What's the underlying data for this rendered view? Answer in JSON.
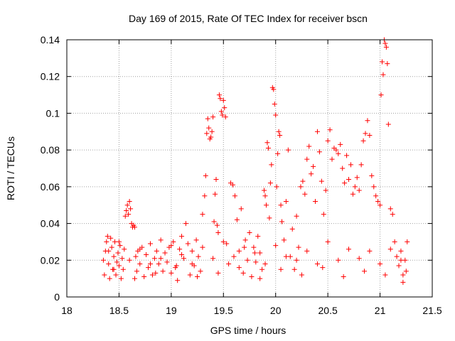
{
  "chart_data": {
    "type": "scatter",
    "title": "Day 169 of 2015, Rate Of TEC Index for receiver bscn",
    "xlabel": "GPS time / hours",
    "ylabel": "ROTI / TECUs",
    "xlim": [
      18,
      21.5
    ],
    "ylim": [
      0,
      0.14
    ],
    "xticks": [
      "18",
      "18.5",
      "19",
      "19.5",
      "20",
      "20.5",
      "21",
      "21.5"
    ],
    "yticks": [
      "0",
      "0.02",
      "0.04",
      "0.06",
      "0.08",
      "0.1",
      "0.12",
      "0.14"
    ],
    "grid": true,
    "marker": "+",
    "series_color": "#ff0000",
    "points": [
      [
        18.35,
        0.02
      ],
      [
        18.36,
        0.012
      ],
      [
        18.37,
        0.025
      ],
      [
        18.38,
        0.03
      ],
      [
        18.39,
        0.033
      ],
      [
        18.4,
        0.018
      ],
      [
        18.41,
        0.01
      ],
      [
        18.42,
        0.032
      ],
      [
        18.43,
        0.027
      ],
      [
        18.44,
        0.015
      ],
      [
        18.45,
        0.022
      ],
      [
        18.46,
        0.03
      ],
      [
        18.47,
        0.012
      ],
      [
        18.48,
        0.019
      ],
      [
        18.49,
        0.024
      ],
      [
        18.5,
        0.017
      ],
      [
        18.51,
        0.028
      ],
      [
        18.52,
        0.01
      ],
      [
        18.53,
        0.021
      ],
      [
        18.54,
        0.015
      ],
      [
        18.55,
        0.026
      ],
      [
        18.56,
        0.044
      ],
      [
        18.57,
        0.047
      ],
      [
        18.58,
        0.05
      ],
      [
        18.59,
        0.045
      ],
      [
        18.6,
        0.052
      ],
      [
        18.61,
        0.048
      ],
      [
        18.62,
        0.04
      ],
      [
        18.63,
        0.038
      ],
      [
        18.64,
        0.039
      ],
      [
        18.65,
        0.038
      ],
      [
        18.66,
        0.022
      ],
      [
        18.67,
        0.014
      ],
      [
        18.68,
        0.025
      ],
      [
        18.7,
        0.018
      ],
      [
        18.72,
        0.027
      ],
      [
        18.74,
        0.011
      ],
      [
        18.76,
        0.023
      ],
      [
        18.78,
        0.016
      ],
      [
        18.8,
        0.029
      ],
      [
        18.82,
        0.012
      ],
      [
        18.84,
        0.021
      ],
      [
        18.86,
        0.025
      ],
      [
        18.88,
        0.018
      ],
      [
        18.9,
        0.031
      ],
      [
        18.92,
        0.014
      ],
      [
        18.94,
        0.024
      ],
      [
        18.96,
        0.019
      ],
      [
        18.98,
        0.027
      ],
      [
        19.0,
        0.013
      ],
      [
        19.02,
        0.03
      ],
      [
        19.04,
        0.016
      ],
      [
        19.06,
        0.009
      ],
      [
        19.08,
        0.026
      ],
      [
        19.1,
        0.033
      ],
      [
        19.12,
        0.021
      ],
      [
        19.14,
        0.04
      ],
      [
        19.16,
        0.029
      ],
      [
        19.18,
        0.012
      ],
      [
        19.2,
        0.025
      ],
      [
        19.22,
        0.017
      ],
      [
        19.24,
        0.031
      ],
      [
        19.26,
        0.022
      ],
      [
        19.28,
        0.014
      ],
      [
        19.3,
        0.045
      ],
      [
        19.32,
        0.055
      ],
      [
        19.33,
        0.066
      ],
      [
        19.34,
        0.089
      ],
      [
        19.35,
        0.097
      ],
      [
        19.36,
        0.092
      ],
      [
        19.37,
        0.086
      ],
      [
        19.38,
        0.087
      ],
      [
        19.39,
        0.09
      ],
      [
        19.4,
        0.098
      ],
      [
        19.41,
        0.041
      ],
      [
        19.42,
        0.056
      ],
      [
        19.43,
        0.064
      ],
      [
        19.44,
        0.039
      ],
      [
        19.45,
        0.035
      ],
      [
        19.46,
        0.11
      ],
      [
        19.47,
        0.108
      ],
      [
        19.48,
        0.101
      ],
      [
        19.49,
        0.099
      ],
      [
        19.5,
        0.107
      ],
      [
        19.51,
        0.103
      ],
      [
        19.52,
        0.098
      ],
      [
        19.53,
        0.029
      ],
      [
        19.55,
        0.018
      ],
      [
        19.57,
        0.062
      ],
      [
        19.59,
        0.061
      ],
      [
        19.61,
        0.055
      ],
      [
        19.63,
        0.042
      ],
      [
        19.65,
        0.025
      ],
      [
        19.67,
        0.048
      ],
      [
        19.69,
        0.013
      ],
      [
        19.71,
        0.031
      ],
      [
        19.73,
        0.02
      ],
      [
        19.75,
        0.035
      ],
      [
        19.77,
        0.011
      ],
      [
        19.79,
        0.027
      ],
      [
        19.81,
        0.019
      ],
      [
        19.83,
        0.033
      ],
      [
        19.85,
        0.024
      ],
      [
        19.87,
        0.015
      ],
      [
        19.89,
        0.058
      ],
      [
        19.9,
        0.055
      ],
      [
        19.91,
        0.05
      ],
      [
        19.92,
        0.084
      ],
      [
        19.93,
        0.081
      ],
      [
        19.94,
        0.043
      ],
      [
        19.95,
        0.062
      ],
      [
        19.96,
        0.072
      ],
      [
        19.97,
        0.114
      ],
      [
        19.98,
        0.113
      ],
      [
        19.99,
        0.105
      ],
      [
        20.0,
        0.099
      ],
      [
        20.01,
        0.06
      ],
      [
        20.02,
        0.078
      ],
      [
        20.03,
        0.09
      ],
      [
        20.04,
        0.088
      ],
      [
        20.05,
        0.05
      ],
      [
        20.06,
        0.041
      ],
      [
        20.08,
        0.031
      ],
      [
        20.1,
        0.052
      ],
      [
        20.12,
        0.08
      ],
      [
        20.14,
        0.022
      ],
      [
        20.16,
        0.037
      ],
      [
        20.18,
        0.015
      ],
      [
        20.2,
        0.044
      ],
      [
        20.22,
        0.027
      ],
      [
        20.24,
        0.06
      ],
      [
        20.26,
        0.063
      ],
      [
        20.28,
        0.056
      ],
      [
        20.3,
        0.075
      ],
      [
        20.32,
        0.082
      ],
      [
        20.34,
        0.067
      ],
      [
        20.36,
        0.071
      ],
      [
        20.38,
        0.052
      ],
      [
        20.4,
        0.09
      ],
      [
        20.42,
        0.079
      ],
      [
        20.44,
        0.063
      ],
      [
        20.46,
        0.045
      ],
      [
        20.48,
        0.058
      ],
      [
        20.5,
        0.085
      ],
      [
        20.52,
        0.091
      ],
      [
        20.54,
        0.075
      ],
      [
        20.56,
        0.081
      ],
      [
        20.58,
        0.08
      ],
      [
        20.6,
        0.078
      ],
      [
        20.62,
        0.083
      ],
      [
        20.64,
        0.07
      ],
      [
        20.66,
        0.062
      ],
      [
        20.68,
        0.077
      ],
      [
        20.7,
        0.064
      ],
      [
        20.72,
        0.072
      ],
      [
        20.74,
        0.056
      ],
      [
        20.76,
        0.06
      ],
      [
        20.78,
        0.065
      ],
      [
        20.8,
        0.058
      ],
      [
        20.82,
        0.072
      ],
      [
        20.84,
        0.085
      ],
      [
        20.86,
        0.089
      ],
      [
        20.88,
        0.096
      ],
      [
        20.9,
        0.088
      ],
      [
        20.92,
        0.066
      ],
      [
        20.94,
        0.06
      ],
      [
        20.96,
        0.055
      ],
      [
        20.98,
        0.052
      ],
      [
        21.0,
        0.05
      ],
      [
        21.01,
        0.11
      ],
      [
        21.02,
        0.128
      ],
      [
        21.03,
        0.121
      ],
      [
        21.04,
        0.14
      ],
      [
        21.05,
        0.138
      ],
      [
        21.06,
        0.136
      ],
      [
        21.07,
        0.127
      ],
      [
        21.08,
        0.094
      ],
      [
        21.1,
        0.048
      ],
      [
        21.12,
        0.045
      ],
      [
        21.14,
        0.03
      ],
      [
        21.16,
        0.022
      ],
      [
        21.18,
        0.017
      ],
      [
        21.2,
        0.025
      ],
      [
        21.22,
        0.012
      ],
      [
        21.24,
        0.02
      ],
      [
        21.26,
        0.03
      ],
      [
        18.4,
        0.025
      ],
      [
        18.5,
        0.03
      ],
      [
        18.6,
        0.02
      ],
      [
        18.7,
        0.026
      ],
      [
        18.8,
        0.018
      ],
      [
        18.9,
        0.021
      ],
      [
        19.0,
        0.028
      ],
      [
        19.1,
        0.023
      ],
      [
        19.2,
        0.018
      ],
      [
        19.3,
        0.027
      ],
      [
        19.4,
        0.021
      ],
      [
        19.5,
        0.03
      ],
      [
        19.6,
        0.022
      ],
      [
        19.7,
        0.027
      ],
      [
        19.8,
        0.024
      ],
      [
        19.9,
        0.018
      ],
      [
        20.0,
        0.028
      ],
      [
        20.1,
        0.022
      ],
      [
        20.2,
        0.02
      ],
      [
        20.3,
        0.025
      ],
      [
        20.4,
        0.018
      ],
      [
        20.5,
        0.03
      ],
      [
        20.6,
        0.02
      ],
      [
        20.7,
        0.026
      ],
      [
        20.8,
        0.021
      ],
      [
        20.9,
        0.025
      ],
      [
        21.0,
        0.018
      ],
      [
        21.1,
        0.026
      ],
      [
        21.2,
        0.02
      ],
      [
        21.25,
        0.014
      ],
      [
        18.45,
        0.015
      ],
      [
        18.65,
        0.01
      ],
      [
        18.85,
        0.013
      ],
      [
        19.05,
        0.017
      ],
      [
        19.25,
        0.011
      ],
      [
        19.45,
        0.013
      ],
      [
        19.65,
        0.016
      ],
      [
        19.85,
        0.01
      ],
      [
        20.05,
        0.015
      ],
      [
        20.25,
        0.012
      ],
      [
        20.45,
        0.016
      ],
      [
        20.65,
        0.011
      ],
      [
        20.85,
        0.014
      ],
      [
        21.05,
        0.012
      ],
      [
        21.22,
        0.008
      ]
    ]
  }
}
